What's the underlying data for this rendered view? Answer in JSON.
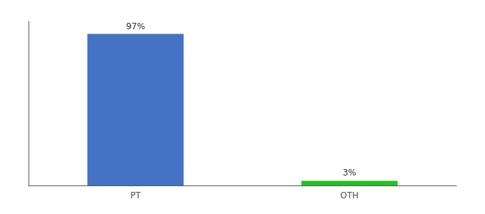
{
  "chart_data": {
    "type": "bar",
    "categories": [
      "PT",
      "OTH"
    ],
    "values": [
      97,
      3
    ],
    "value_labels": [
      "97%",
      "3%"
    ],
    "colors": [
      "#4472c4",
      "#21c221"
    ],
    "ylim": [
      0,
      105
    ],
    "yticks": [],
    "grid": false,
    "data_labels": true,
    "tick_labels": "x"
  }
}
